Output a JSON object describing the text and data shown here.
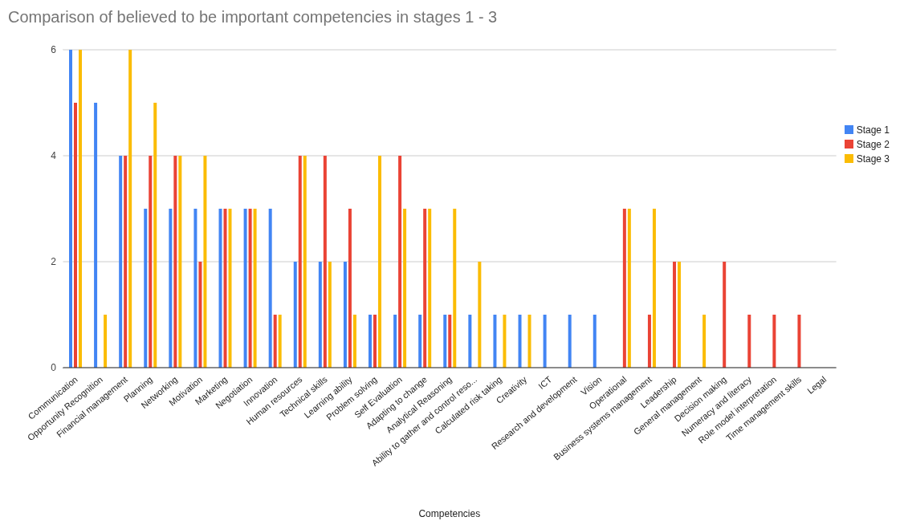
{
  "chart_data": {
    "type": "bar",
    "title": "Comparison of believed to be important competencies in stages 1 - 3",
    "xlabel": "Competencies",
    "categories": [
      "Communication",
      "Opportunity Recognition",
      "Financial management",
      "Planning",
      "Networking",
      "Motivation",
      "Marketing",
      "Negotiation",
      "Innovation",
      "Human resources",
      "Technical skills",
      "Learning ability",
      "Problem solving",
      "Self Evaluation",
      "Adapting to change",
      "Analytical Reasoning",
      "Ability to gather and control reso...",
      "Calculated risk taking",
      "Creativity",
      "ICT",
      "Research and development",
      "Vision",
      "Operational",
      "Business systems management",
      "Leadership",
      "General management",
      "Decision making",
      "Numeracy and literacy",
      "Role model interpretation",
      "Time management skills",
      "Legal"
    ],
    "series": [
      {
        "name": "Stage 1",
        "color": "#4285f4",
        "values": [
          6,
          5,
          4,
          3,
          3,
          3,
          3,
          3,
          3,
          2,
          2,
          2,
          1,
          1,
          1,
          1,
          1,
          1,
          1,
          1,
          1,
          1,
          0,
          0,
          0,
          0,
          0,
          0,
          0,
          0,
          0
        ]
      },
      {
        "name": "Stage 2",
        "color": "#ea4335",
        "values": [
          5,
          0,
          4,
          4,
          4,
          2,
          3,
          3,
          1,
          4,
          4,
          3,
          1,
          4,
          3,
          1,
          0,
          0,
          0,
          0,
          0,
          0,
          3,
          1,
          2,
          0,
          2,
          1,
          1,
          1,
          0
        ]
      },
      {
        "name": "Stage 3",
        "color": "#fbbc04",
        "values": [
          6,
          1,
          6,
          5,
          4,
          4,
          3,
          3,
          1,
          4,
          2,
          1,
          4,
          3,
          3,
          3,
          2,
          1,
          1,
          0,
          0,
          0,
          3,
          3,
          2,
          1,
          0,
          0,
          0,
          0,
          0
        ]
      }
    ],
    "ylim": [
      0,
      6
    ],
    "yticks": [
      0,
      2,
      4,
      6
    ],
    "grid": "y",
    "legend": "right"
  }
}
